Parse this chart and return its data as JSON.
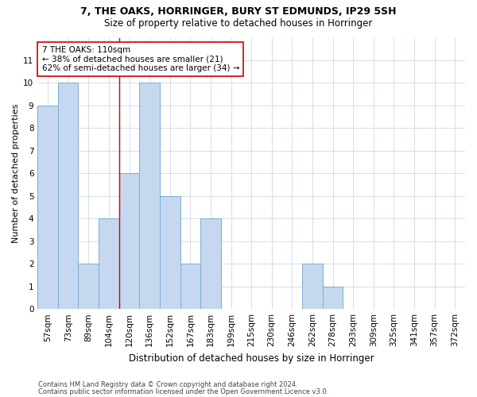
{
  "title1": "7, THE OAKS, HORRINGER, BURY ST EDMUNDS, IP29 5SH",
  "title2": "Size of property relative to detached houses in Horringer",
  "xlabel": "Distribution of detached houses by size in Horringer",
  "ylabel": "Number of detached properties",
  "categories": [
    "57sqm",
    "73sqm",
    "89sqm",
    "104sqm",
    "120sqm",
    "136sqm",
    "152sqm",
    "167sqm",
    "183sqm",
    "199sqm",
    "215sqm",
    "230sqm",
    "246sqm",
    "262sqm",
    "278sqm",
    "293sqm",
    "309sqm",
    "325sqm",
    "341sqm",
    "357sqm",
    "372sqm"
  ],
  "values": [
    9,
    10,
    2,
    4,
    6,
    10,
    5,
    2,
    4,
    0,
    0,
    0,
    0,
    2,
    1,
    0,
    0,
    0,
    0,
    0,
    0
  ],
  "bar_color": "#c5d8ef",
  "bar_edge_color": "#7aadd4",
  "bar_linewidth": 0.7,
  "annotation_line1": "7 THE OAKS: 110sqm",
  "annotation_line2": "← 38% of detached houses are smaller (21)",
  "annotation_line3": "62% of semi-detached houses are larger (34) →",
  "vline_x": 3.5,
  "vline_color": "#cc0000",
  "vline_linewidth": 1.0,
  "ylim_max": 12,
  "grid_color": "#d0d8e8",
  "background_color": "#ffffff",
  "footnote1": "Contains HM Land Registry data © Crown copyright and database right 2024.",
  "footnote2": "Contains public sector information licensed under the Open Government Licence v3.0.",
  "title1_fontsize": 9.0,
  "title2_fontsize": 8.5,
  "ylabel_fontsize": 8.0,
  "xlabel_fontsize": 8.5,
  "tick_fontsize": 7.5,
  "annot_fontsize": 7.5,
  "footnote_fontsize": 6.0
}
